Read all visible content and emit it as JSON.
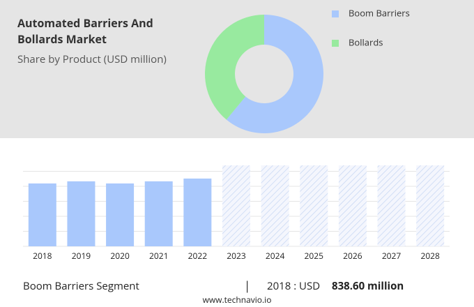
{
  "chart_data": [
    {
      "type": "donut",
      "title": "Automated Barriers And Bollards Market",
      "subtitle": "Share by Product (USD million)",
      "categories": [
        "Boom Barriers",
        "Bollards"
      ],
      "values": [
        61,
        39
      ],
      "colors": [
        "#a9c8fc",
        "#98ea9f"
      ]
    },
    {
      "type": "bar",
      "categories": [
        "2018",
        "2019",
        "2020",
        "2021",
        "2022",
        "2023",
        "2024",
        "2025",
        "2026",
        "2027",
        "2028"
      ],
      "values": [
        838.6,
        867,
        838.6,
        867,
        904,
        null,
        null,
        null,
        null,
        null,
        null
      ],
      "color": "#a9c8fc",
      "ylim": [
        0,
        1080
      ],
      "footer": {
        "segment": "Boom Barriers Segment",
        "label": "2018 : USD",
        "value": "838.60 million"
      },
      "source": "www.technavio.io"
    }
  ]
}
